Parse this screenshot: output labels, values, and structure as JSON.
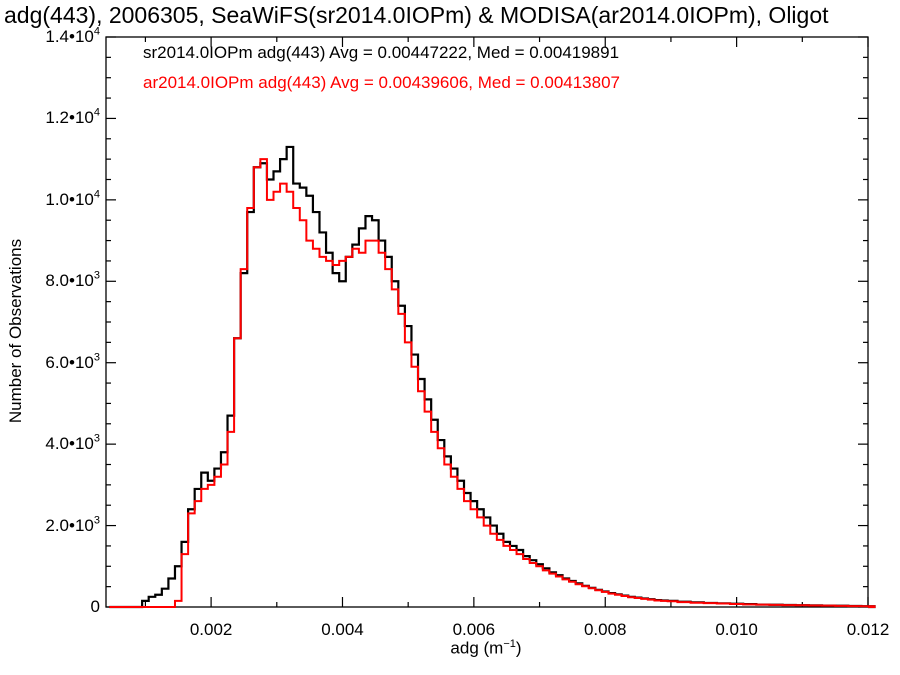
{
  "chart_data": {
    "type": "histogram",
    "title": "adg(443), 2006305, SeaWiFS(sr2014.0IOPm) & MODISA(ar2014.0IOPm), Oligot",
    "xlabel": "adg (m",
    "xlabel_exp": "−1",
    "xlabel_suffix": ")",
    "ylabel": "Number of Observations",
    "xlim": [
      0.0004,
      0.012
    ],
    "ylim": [
      0,
      14000
    ],
    "grid": false,
    "legend_position": "top-left",
    "xticks": [
      {
        "value": 0.002,
        "label": "0.002"
      },
      {
        "value": 0.004,
        "label": "0.004"
      },
      {
        "value": 0.006,
        "label": "0.006"
      },
      {
        "value": 0.008,
        "label": "0.008"
      },
      {
        "value": 0.01,
        "label": "0.010"
      },
      {
        "value": 0.012,
        "label": "0.012"
      }
    ],
    "yticks": [
      {
        "value": 0,
        "label": "0",
        "exp": ""
      },
      {
        "value": 2000,
        "label": "2.0•10",
        "exp": "3"
      },
      {
        "value": 4000,
        "label": "4.0•10",
        "exp": "3"
      },
      {
        "value": 6000,
        "label": "6.0•10",
        "exp": "3"
      },
      {
        "value": 8000,
        "label": "8.0•10",
        "exp": "3"
      },
      {
        "value": 10000,
        "label": "1.0•10",
        "exp": "4"
      },
      {
        "value": 12000,
        "label": "1.2•10",
        "exp": "4"
      },
      {
        "value": 14000,
        "label": "1.4•10",
        "exp": "4"
      }
    ],
    "series": [
      {
        "name": "sr2014.0IOPm adg(443) Avg = 0.00447222, Med = 0.00419891",
        "color": "#000000",
        "x": [
          0.001,
          0.0011,
          0.0012,
          0.0013,
          0.0014,
          0.0015,
          0.0016,
          0.0017,
          0.0018,
          0.0019,
          0.002,
          0.0021,
          0.0022,
          0.0023,
          0.0024,
          0.0025,
          0.0026,
          0.0027,
          0.0028,
          0.0029,
          0.003,
          0.0031,
          0.0032,
          0.0033,
          0.0034,
          0.0035,
          0.0036,
          0.0037,
          0.0038,
          0.0039,
          0.004,
          0.0041,
          0.0042,
          0.0043,
          0.0044,
          0.0045,
          0.0046,
          0.0047,
          0.0048,
          0.0049,
          0.005,
          0.0051,
          0.0052,
          0.0053,
          0.0054,
          0.0055,
          0.0056,
          0.0057,
          0.0058,
          0.0059,
          0.006,
          0.0061,
          0.0062,
          0.0063,
          0.0064,
          0.0065,
          0.0066,
          0.0067,
          0.0068,
          0.0069,
          0.007,
          0.0071,
          0.0072,
          0.0073,
          0.0074,
          0.0075,
          0.0076,
          0.0077,
          0.0078,
          0.0079,
          0.008,
          0.0081,
          0.0082,
          0.0083,
          0.0084,
          0.0085,
          0.0086,
          0.0087,
          0.0088,
          0.0089,
          0.009,
          0.0092,
          0.0094,
          0.0096,
          0.0098,
          0.01,
          0.0102,
          0.0104,
          0.0106,
          0.0108,
          0.011,
          0.0112,
          0.0114,
          0.0116,
          0.0118,
          0.012
        ],
        "y": [
          150,
          250,
          300,
          450,
          700,
          1000,
          1600,
          2400,
          2900,
          3300,
          3100,
          3400,
          3800,
          4700,
          6600,
          8200,
          9700,
          10800,
          10900,
          10500,
          10700,
          11000,
          11300,
          10400,
          10300,
          10100,
          9700,
          9200,
          8700,
          8200,
          8000,
          8600,
          8900,
          9300,
          9600,
          9500,
          9000,
          8600,
          8000,
          7400,
          6900,
          6200,
          5600,
          5100,
          4600,
          4100,
          3700,
          3400,
          3100,
          2800,
          2600,
          2400,
          2200,
          2000,
          1800,
          1600,
          1500,
          1400,
          1250,
          1150,
          1050,
          950,
          850,
          780,
          700,
          640,
          580,
          520,
          470,
          420,
          380,
          340,
          310,
          280,
          250,
          230,
          210,
          190,
          170,
          160,
          150,
          130,
          115,
          100,
          90,
          80,
          70,
          60,
          55,
          50,
          45,
          40,
          35,
          30,
          25,
          20
        ]
      },
      {
        "name": "ar2014.0IOPm adg(443) Avg = 0.00439606, Med = 0.00413807",
        "color": "#ff0000",
        "x": [
          0.001,
          0.0011,
          0.0012,
          0.0013,
          0.0014,
          0.0015,
          0.0016,
          0.0017,
          0.0018,
          0.0019,
          0.002,
          0.0021,
          0.0022,
          0.0023,
          0.0024,
          0.0025,
          0.0026,
          0.0027,
          0.0028,
          0.0029,
          0.003,
          0.0031,
          0.0032,
          0.0033,
          0.0034,
          0.0035,
          0.0036,
          0.0037,
          0.0038,
          0.0039,
          0.004,
          0.0041,
          0.0042,
          0.0043,
          0.0044,
          0.0045,
          0.0046,
          0.0047,
          0.0048,
          0.0049,
          0.005,
          0.0051,
          0.0052,
          0.0053,
          0.0054,
          0.0055,
          0.0056,
          0.0057,
          0.0058,
          0.0059,
          0.006,
          0.0061,
          0.0062,
          0.0063,
          0.0064,
          0.0065,
          0.0066,
          0.0067,
          0.0068,
          0.0069,
          0.007,
          0.0071,
          0.0072,
          0.0073,
          0.0074,
          0.0075,
          0.0076,
          0.0077,
          0.0078,
          0.0079,
          0.008,
          0.0081,
          0.0082,
          0.0083,
          0.0084,
          0.0085,
          0.0086,
          0.0087,
          0.0088,
          0.0089,
          0.009,
          0.0092,
          0.0094,
          0.0096,
          0.0098,
          0.01,
          0.0102,
          0.0104,
          0.0106,
          0.0108,
          0.011,
          0.0112,
          0.0114,
          0.0116,
          0.0118,
          0.012
        ],
        "y": [
          0,
          0,
          0,
          0,
          0,
          150,
          1300,
          2300,
          2600,
          2900,
          3000,
          3200,
          3500,
          4300,
          6600,
          8300,
          9800,
          10800,
          11000,
          10000,
          10200,
          10400,
          10200,
          9800,
          9500,
          9000,
          8800,
          8600,
          8500,
          8400,
          8500,
          8600,
          8800,
          8700,
          9000,
          9000,
          8700,
          8300,
          7800,
          7200,
          6500,
          5900,
          5300,
          4800,
          4300,
          3900,
          3500,
          3200,
          2900,
          2600,
          2400,
          2200,
          2000,
          1800,
          1650,
          1500,
          1400,
          1300,
          1180,
          1080,
          1000,
          900,
          820,
          750,
          680,
          620,
          560,
          510,
          460,
          410,
          370,
          330,
          300,
          270,
          240,
          220,
          200,
          180,
          160,
          150,
          140,
          120,
          105,
          95,
          85,
          75,
          65,
          58,
          52,
          47,
          42,
          38,
          33,
          28,
          23,
          18
        ]
      }
    ]
  }
}
